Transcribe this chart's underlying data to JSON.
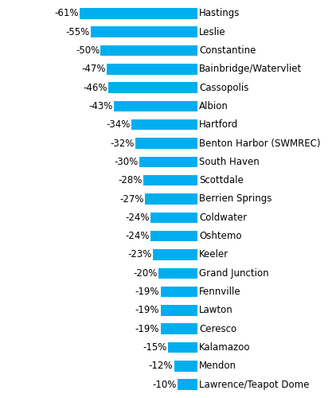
{
  "categories": [
    "Hastings",
    "Leslie",
    "Constantine",
    "Bainbridge/Watervliet",
    "Cassopolis",
    "Albion",
    "Hartford",
    "Benton Harbor (SWMREC)",
    "South Haven",
    "Scottdale",
    "Berrien Springs",
    "Coldwater",
    "Oshtemo",
    "Keeler",
    "Grand Junction",
    "Fennville",
    "Lawton",
    "Ceresco",
    "Kalamazoo",
    "Mendon",
    "Lawrence/Teapot Dome"
  ],
  "values": [
    -61,
    -55,
    -50,
    -47,
    -46,
    -43,
    -34,
    -32,
    -30,
    -28,
    -27,
    -24,
    -24,
    -23,
    -20,
    -19,
    -19,
    -19,
    -15,
    -12,
    -10
  ],
  "bar_color": "#00AEEF",
  "background_color": "#FFFFFF",
  "label_fontsize": 8.5,
  "bar_height": 0.58
}
